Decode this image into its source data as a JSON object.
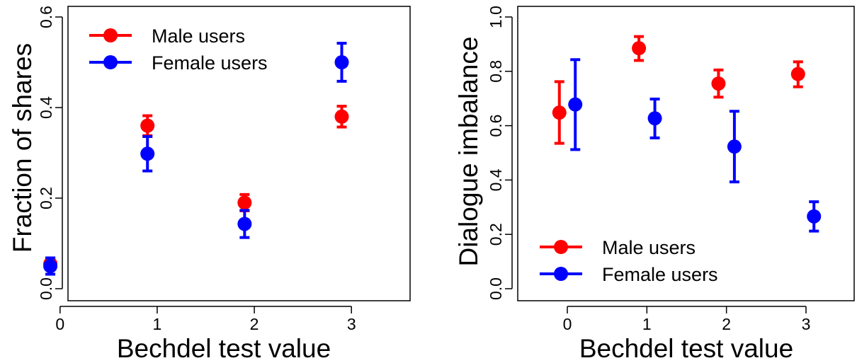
{
  "chart_data": [
    {
      "type": "scatter",
      "xlabel": "Bechdel test value",
      "ylabel": "Fraction of shares",
      "xticks": [
        "0",
        "1",
        "2",
        "3"
      ],
      "yticks": [
        "0.0",
        "0.2",
        "0.4",
        "0.6"
      ],
      "xlim": [
        -0.6,
        3.6
      ],
      "ylim": [
        -0.02,
        0.6
      ],
      "legend": {
        "position": "top-left"
      },
      "series": [
        {
          "name": "Male users",
          "color": "#ff0000",
          "x": [
            -0.1,
            0.9,
            1.9,
            2.9
          ],
          "y": [
            0.055,
            0.36,
            0.19,
            0.38
          ],
          "lower": [
            0.045,
            0.338,
            0.172,
            0.357
          ],
          "upper": [
            0.065,
            0.382,
            0.208,
            0.403
          ]
        },
        {
          "name": "Female users",
          "color": "#0000ff",
          "x": [
            -0.1,
            0.9,
            1.9,
            2.9
          ],
          "y": [
            0.05,
            0.298,
            0.143,
            0.5
          ],
          "lower": [
            0.032,
            0.26,
            0.113,
            0.458
          ],
          "upper": [
            0.068,
            0.336,
            0.173,
            0.542
          ]
        }
      ]
    },
    {
      "type": "scatter",
      "xlabel": "Bechdel test value",
      "ylabel": "Dialogue imbalance",
      "xticks": [
        "0",
        "1",
        "2",
        "3"
      ],
      "yticks": [
        "0.0",
        "0.2",
        "0.4",
        "0.6",
        "0.8",
        "1.0"
      ],
      "xlim": [
        -0.6,
        3.6
      ],
      "ylim": [
        -0.04,
        1.02
      ],
      "legend": {
        "position": "bottom-left"
      },
      "series": [
        {
          "name": "Male users",
          "color": "#ff0000",
          "x": [
            -0.1,
            0.9,
            1.9,
            2.9
          ],
          "y": [
            0.648,
            0.885,
            0.755,
            0.79
          ],
          "lower": [
            0.535,
            0.84,
            0.705,
            0.743
          ],
          "upper": [
            0.762,
            0.928,
            0.805,
            0.835
          ]
        },
        {
          "name": "Female users",
          "color": "#0000ff",
          "x": [
            0.1,
            1.1,
            2.1,
            3.1
          ],
          "y": [
            0.678,
            0.627,
            0.523,
            0.266
          ],
          "lower": [
            0.512,
            0.555,
            0.393,
            0.212
          ],
          "upper": [
            0.843,
            0.698,
            0.653,
            0.32
          ]
        }
      ]
    }
  ]
}
